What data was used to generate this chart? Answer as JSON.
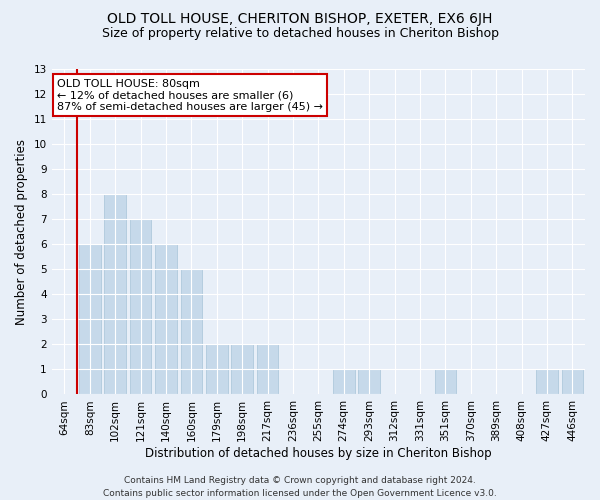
{
  "title": "OLD TOLL HOUSE, CHERITON BISHOP, EXETER, EX6 6JH",
  "subtitle": "Size of property relative to detached houses in Cheriton Bishop",
  "xlabel": "Distribution of detached houses by size in Cheriton Bishop",
  "ylabel": "Number of detached properties",
  "categories": [
    "64sqm",
    "83sqm",
    "102sqm",
    "121sqm",
    "140sqm",
    "160sqm",
    "179sqm",
    "198sqm",
    "217sqm",
    "236sqm",
    "255sqm",
    "274sqm",
    "293sqm",
    "312sqm",
    "331sqm",
    "351sqm",
    "370sqm",
    "389sqm",
    "408sqm",
    "427sqm",
    "446sqm"
  ],
  "values": [
    0,
    6,
    8,
    7,
    6,
    5,
    2,
    2,
    2,
    0,
    0,
    1,
    1,
    0,
    0,
    1,
    0,
    0,
    0,
    1,
    1
  ],
  "bar_color": "#c6d9ea",
  "bar_edge_color": "#a8c4d8",
  "vline_x": 0.5,
  "vline_color": "#cc0000",
  "annotation_line1": "OLD TOLL HOUSE: 80sqm",
  "annotation_line2": "← 12% of detached houses are smaller (6)",
  "annotation_line3": "87% of semi-detached houses are larger (45) →",
  "annotation_box_color": "#ffffff",
  "annotation_box_edge_color": "#cc0000",
  "ylim": [
    0,
    13
  ],
  "yticks": [
    0,
    1,
    2,
    3,
    4,
    5,
    6,
    7,
    8,
    9,
    10,
    11,
    12,
    13
  ],
  "footer_line1": "Contains HM Land Registry data © Crown copyright and database right 2024.",
  "footer_line2": "Contains public sector information licensed under the Open Government Licence v3.0.",
  "bg_color": "#e8eff8",
  "plot_bg_color": "#e8eff8",
  "grid_color": "#ffffff",
  "title_fontsize": 10,
  "subtitle_fontsize": 9,
  "axis_label_fontsize": 8.5,
  "tick_fontsize": 7.5,
  "annotation_fontsize": 8,
  "footer_fontsize": 6.5
}
